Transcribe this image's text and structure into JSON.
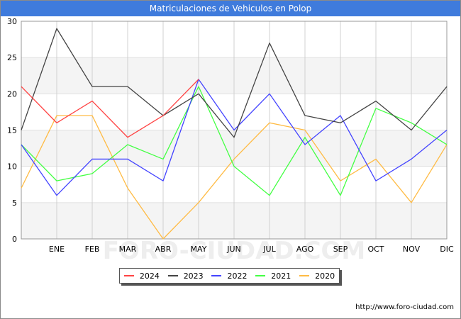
{
  "chart_data": {
    "type": "line",
    "title": "Matriculaciones de Vehiculos en Polop",
    "categories": [
      "",
      "ENE",
      "FEB",
      "MAR",
      "ABR",
      "MAY",
      "JUN",
      "JUL",
      "AGO",
      "SEP",
      "OCT",
      "NOV",
      "DIC"
    ],
    "ylim": [
      0,
      30
    ],
    "yticks": [
      0,
      5,
      10,
      15,
      20,
      25,
      30
    ],
    "grid": true,
    "legend_position": "bottom",
    "series": [
      {
        "name": "2024",
        "color": "#ff4444",
        "values": [
          21,
          16,
          19,
          14,
          17,
          22,
          null,
          null,
          null,
          null,
          null,
          null,
          null
        ]
      },
      {
        "name": "2023",
        "color": "#444444",
        "values": [
          15,
          29,
          21,
          21,
          17,
          20,
          14,
          27,
          17,
          16,
          19,
          15,
          21
        ]
      },
      {
        "name": "2022",
        "color": "#4444ff",
        "values": [
          13,
          6,
          11,
          11,
          8,
          22,
          15,
          20,
          13,
          17,
          8,
          11,
          15
        ]
      },
      {
        "name": "2021",
        "color": "#44ff44",
        "values": [
          13,
          8,
          9,
          13,
          11,
          21,
          10,
          6,
          14,
          6,
          18,
          16,
          13
        ]
      },
      {
        "name": "2020",
        "color": "#ffbb44",
        "values": [
          7,
          17,
          17,
          7,
          0,
          5,
          11,
          16,
          15,
          8,
          11,
          5,
          13
        ]
      }
    ]
  },
  "watermark": "FORO-CIUDAD.COM",
  "footer": {
    "url": "http://www.foro-ciudad.com"
  }
}
